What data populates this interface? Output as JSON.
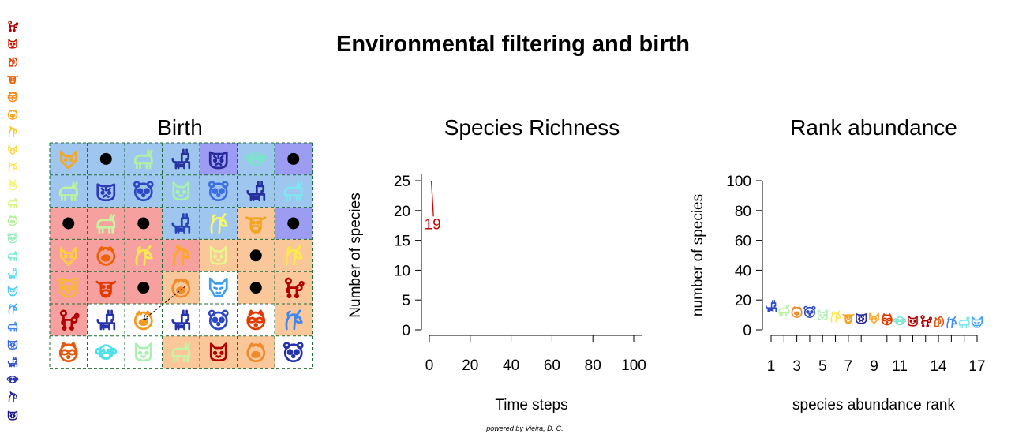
{
  "figure": {
    "title": "Environmental filtering and birth",
    "credit": "powered by Vieira, D. C."
  },
  "colors": {
    "env_blue": "#9fc6ee",
    "env_purple": "#9c9cf3",
    "env_red": "#f6a19f",
    "env_orange": "#f9c79a",
    "env_white": "#ffffff",
    "grid_line": "#1f6b3a",
    "richness_line": "#cc0000"
  },
  "legend": {
    "species_colors": [
      "#b00000",
      "#cc1500",
      "#e03a00",
      "#f06000",
      "#fb8a17",
      "#fda62a",
      "#fdc02e",
      "#fdd53c",
      "#fde84e",
      "#f4f66c",
      "#d8f585",
      "#b9f29e",
      "#99eebb",
      "#7be8d0",
      "#5fdcef",
      "#4cc7f5",
      "#46a9f5",
      "#3f87ef",
      "#3866de",
      "#2f48c6",
      "#2732ad",
      "#202296",
      "#1a1880"
    ],
    "species_icons": [
      "poodle-icon",
      "cat-icon",
      "squirrel-icon",
      "cow-icon",
      "raccoon-icon",
      "pig-icon",
      "horse-icon",
      "fox-icon",
      "unicorn-icon",
      "rabbit-icon",
      "goat-icon",
      "pig-icon",
      "panda-icon",
      "goat-icon",
      "llama-icon",
      "wolf-icon",
      "unicorn-icon",
      "goat-icon",
      "tiger-icon",
      "llama-icon",
      "monkey-icon",
      "horse-icon",
      "tiger-icon"
    ]
  },
  "chart_data": [
    {
      "type": "heatmap",
      "title": "Birth",
      "rows": 7,
      "cols": 7,
      "environment": [
        [
          "blue",
          "blue",
          "blue",
          "blue",
          "purple",
          "blue",
          "purple"
        ],
        [
          "blue",
          "blue",
          "blue",
          "blue",
          "blue",
          "blue",
          "blue"
        ],
        [
          "red",
          "red",
          "red",
          "blue",
          "blue",
          "orange",
          "purple"
        ],
        [
          "red",
          "red",
          "red",
          "red",
          "orange",
          "orange",
          "orange"
        ],
        [
          "red",
          "red",
          "red",
          "orange",
          "white",
          "orange",
          "orange"
        ],
        [
          "red",
          "white",
          "white",
          "white",
          "white",
          "white",
          "orange"
        ],
        [
          "white",
          "white",
          "white",
          "orange",
          "orange",
          "orange",
          "white"
        ]
      ],
      "occupants": [
        [
          {
            "icon": "fox-icon",
            "color": "#f7a726"
          },
          {
            "empty": true
          },
          {
            "icon": "goat-icon",
            "color": "#b2f29e"
          },
          {
            "icon": "llama-icon",
            "color": "#27339e"
          },
          {
            "icon": "tiger-icon",
            "color": "#262a9a"
          },
          {
            "icon": "monkey-icon",
            "color": "#7fe0cf"
          },
          {
            "empty": true
          }
        ],
        [
          {
            "icon": "goat-icon",
            "color": "#bdf2a0"
          },
          {
            "icon": "tiger-icon",
            "color": "#2e3ab8"
          },
          {
            "icon": "panda-icon",
            "color": "#2f48c6"
          },
          {
            "icon": "cat-icon",
            "color": "#a8f1b0"
          },
          {
            "icon": "panda-icon",
            "color": "#3d6fe0"
          },
          {
            "icon": "llama-icon",
            "color": "#26309e"
          },
          {
            "icon": "goat-icon",
            "color": "#7be8f0"
          }
        ],
        [
          {
            "empty": true
          },
          {
            "icon": "goat-icon",
            "color": "#c8f3a3"
          },
          {
            "empty": true
          },
          {
            "icon": "llama-icon",
            "color": "#2842b8"
          },
          {
            "icon": "unicorn-icon",
            "color": "#f4f66c"
          },
          {
            "icon": "cow-icon",
            "color": "#f3a320"
          },
          {
            "empty": true
          }
        ],
        [
          {
            "icon": "fox-icon",
            "color": "#fdd040"
          },
          {
            "icon": "pig-icon",
            "color": "#f06000"
          },
          {
            "icon": "unicorn-icon",
            "color": "#fde84e"
          },
          {
            "icon": "horse-icon",
            "color": "#fda62a"
          },
          {
            "icon": "cat-icon",
            "color": "#e8f58a"
          },
          {
            "empty": true
          },
          {
            "icon": "unicorn-icon",
            "color": "#fde84e"
          }
        ],
        [
          {
            "icon": "panda-icon",
            "color": "#f8b73a"
          },
          {
            "icon": "cow-icon",
            "color": "#e03a00"
          },
          {
            "empty": true
          },
          {
            "icon": "pig-icon",
            "color": "#f08a2a"
          },
          {
            "icon": "wolf-icon",
            "color": "#3f9ef0"
          },
          {
            "empty": true
          },
          {
            "icon": "poodle-icon",
            "color": "#b00000"
          }
        ],
        [
          {
            "icon": "poodle-icon",
            "color": "#b00000"
          },
          {
            "icon": "llama-icon",
            "color": "#2732ad"
          },
          {
            "icon": "pig-icon",
            "color": "#f49a20"
          },
          {
            "icon": "llama-icon",
            "color": "#2732ad"
          },
          {
            "icon": "panda-icon",
            "color": "#2f48c6"
          },
          {
            "icon": "raccoon-icon",
            "color": "#e03a00"
          },
          {
            "icon": "unicorn-icon",
            "color": "#3f87ef"
          }
        ],
        [
          {
            "icon": "raccoon-icon",
            "color": "#e05a10"
          },
          {
            "icon": "monkey-icon",
            "color": "#4ee0e8"
          },
          {
            "icon": "cat-icon",
            "color": "#a8f1b0"
          },
          {
            "icon": "goat-icon",
            "color": "#c8f3a3"
          },
          {
            "icon": "cat-icon",
            "color": "#b00000"
          },
          {
            "icon": "pig-icon",
            "color": "#f08a2a"
          },
          {
            "icon": "panda-icon",
            "color": "#2732ad"
          }
        ]
      ],
      "birth_arrow": {
        "from": [
          5,
          2
        ],
        "to": [
          4,
          3
        ]
      }
    },
    {
      "type": "line",
      "title": "Species Richness",
      "xlabel": "Time steps",
      "ylabel": "Number of species",
      "xlim": [
        0,
        100
      ],
      "ylim": [
        0,
        25
      ],
      "xticks": [
        0,
        20,
        40,
        60,
        80,
        100
      ],
      "yticks": [
        0,
        5,
        10,
        15,
        20,
        25
      ],
      "x": [
        1,
        2
      ],
      "y": [
        25,
        19
      ],
      "current_label": "19"
    },
    {
      "type": "scatter",
      "title": "Rank abundance",
      "xlabel": "species abundance rank",
      "ylabel": "number of species",
      "xlim": [
        1,
        17
      ],
      "ylim": [
        0,
        100
      ],
      "xticks": [
        1,
        3,
        5,
        7,
        9,
        11,
        14,
        17
      ],
      "yticks": [
        0,
        20,
        40,
        60,
        80,
        100
      ],
      "ranks": [
        1,
        2,
        3,
        4,
        5,
        6,
        7,
        8,
        9,
        10,
        11,
        12,
        13,
        14,
        15,
        16,
        17
      ],
      "values": [
        16,
        13,
        12,
        12,
        10,
        9,
        8,
        8,
        8,
        7,
        6,
        6,
        6,
        6,
        5,
        5,
        5
      ],
      "points": [
        {
          "icon": "llama-icon",
          "color": "#2f48c6"
        },
        {
          "icon": "goat-icon",
          "color": "#b9f29e"
        },
        {
          "icon": "pig-icon",
          "color": "#f08a2a"
        },
        {
          "icon": "panda-icon",
          "color": "#2f48c6"
        },
        {
          "icon": "cat-icon",
          "color": "#a8f1b0"
        },
        {
          "icon": "unicorn-icon",
          "color": "#fde84e"
        },
        {
          "icon": "cow-icon",
          "color": "#f3a320"
        },
        {
          "icon": "tiger-icon",
          "color": "#262a9a"
        },
        {
          "icon": "fox-icon",
          "color": "#fda62a"
        },
        {
          "icon": "raccoon-icon",
          "color": "#e03a00"
        },
        {
          "icon": "monkey-icon",
          "color": "#7be8d0"
        },
        {
          "icon": "cat-icon",
          "color": "#b00000"
        },
        {
          "icon": "poodle-icon",
          "color": "#b00000"
        },
        {
          "icon": "squirrel-icon",
          "color": "#e05a10"
        },
        {
          "icon": "unicorn-icon",
          "color": "#3f87ef"
        },
        {
          "icon": "goat-icon",
          "color": "#7be8f0"
        },
        {
          "icon": "wolf-icon",
          "color": "#3f9ef0"
        }
      ]
    }
  ]
}
